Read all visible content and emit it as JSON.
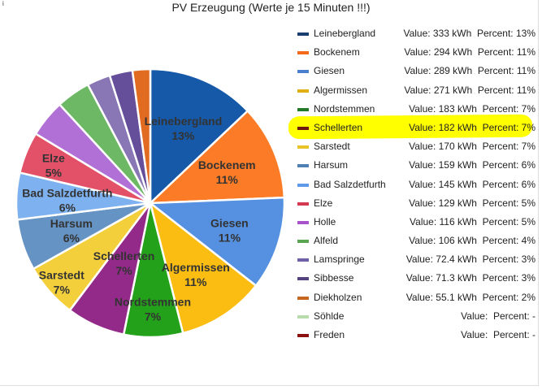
{
  "chart_data": {
    "type": "pie",
    "title": "PV Erzeugung (Werte je 15 Minuten !!!)",
    "unit": "kWh",
    "legend_position": "right",
    "highlighted": "Schellerten",
    "slices": [
      {
        "name": "Leinebergland",
        "value": 333,
        "value_label": "Value: 333 kWh",
        "percent_label": "Percent: 13%",
        "pie_label": "13%",
        "color": "#1659a8",
        "legend_color": "#1a3f6f"
      },
      {
        "name": "Bockenem",
        "value": 294,
        "value_label": "Value: 294 kWh",
        "percent_label": "Percent: 11%",
        "pie_label": "11%",
        "color": "#fb7b26",
        "legend_color": "#f46a1c"
      },
      {
        "name": "Giesen",
        "value": 289,
        "value_label": "Value: 289 kWh",
        "percent_label": "Percent: 11%",
        "pie_label": "11%",
        "color": "#5591e0",
        "legend_color": "#4a7fd0"
      },
      {
        "name": "Algermissen",
        "value": 271,
        "value_label": "Value: 271 kWh",
        "percent_label": "Percent: 11%",
        "pie_label": "11%",
        "color": "#fbbd12",
        "legend_color": "#e0b010"
      },
      {
        "name": "Nordstemmen",
        "value": 183,
        "value_label": "Value: 183 kWh",
        "percent_label": "Percent: 7%",
        "pie_label": "7%",
        "color": "#24a11a",
        "legend_color": "#237a28"
      },
      {
        "name": "Schellerten",
        "value": 182,
        "value_label": "Value: 182 kWh",
        "percent_label": "Percent: 7%",
        "pie_label": "7%",
        "color": "#932a8a",
        "legend_color": "#6e1a10"
      },
      {
        "name": "Sarstedt",
        "value": 170,
        "value_label": "Value: 170 kWh",
        "percent_label": "Percent: 7%",
        "pie_label": "7%",
        "color": "#f4cf3c",
        "legend_color": "#e8c428"
      },
      {
        "name": "Harsum",
        "value": 159,
        "value_label": "Value: 159 kWh",
        "percent_label": "Percent: 6%",
        "pie_label": "6%",
        "color": "#6593c4",
        "legend_color": "#4f7fb3"
      },
      {
        "name": "Bad Salzdetfurth",
        "value": 145,
        "value_label": "Value: 145 kWh",
        "percent_label": "Percent: 6%",
        "pie_label": "6%",
        "color": "#7eb1ef",
        "legend_color": "#5f9ae8"
      },
      {
        "name": "Elze",
        "value": 129,
        "value_label": "Value: 129 kWh",
        "percent_label": "Percent: 5%",
        "pie_label": "5%",
        "color": "#e35168",
        "legend_color": "#d33a4f"
      },
      {
        "name": "Holle",
        "value": 116,
        "value_label": "Value: 116 kWh",
        "percent_label": "Percent: 5%",
        "pie_label": "5%",
        "color": "#b070d6",
        "legend_color": "#a855cc"
      },
      {
        "name": "Alfeld",
        "value": 106,
        "value_label": "Value: 106 kWh",
        "percent_label": "Percent: 4%",
        "pie_label": "4%",
        "color": "#6db865",
        "legend_color": "#5aa552"
      },
      {
        "name": "Lamspringe",
        "value": 72.4,
        "value_label": "Value: 72.4 kWh",
        "percent_label": "Percent: 3%",
        "pie_label": "3%",
        "color": "#8876b5",
        "legend_color": "#6f60a5"
      },
      {
        "name": "Sibbesse",
        "value": 71.3,
        "value_label": "Value: 71.3 kWh",
        "percent_label": "Percent: 3%",
        "pie_label": "3%",
        "color": "#664f9a",
        "legend_color": "#54437f"
      },
      {
        "name": "Diekholzen",
        "value": 55.1,
        "value_label": "Value: 55.1 kWh",
        "percent_label": "Percent: 2%",
        "pie_label": "2%",
        "color": "#e16b20",
        "legend_color": "#c7661f"
      },
      {
        "name": "Söhlde",
        "value": null,
        "value_label": "Value:",
        "percent_label": "Percent: -",
        "pie_label": "",
        "color": "#b9dcac",
        "legend_color": "#b9dcac"
      },
      {
        "name": "Freden",
        "value": null,
        "value_label": "Value:",
        "percent_label": "Percent: -",
        "pie_label": "",
        "color": "#8b1010",
        "legend_color": "#8b1010"
      }
    ]
  }
}
